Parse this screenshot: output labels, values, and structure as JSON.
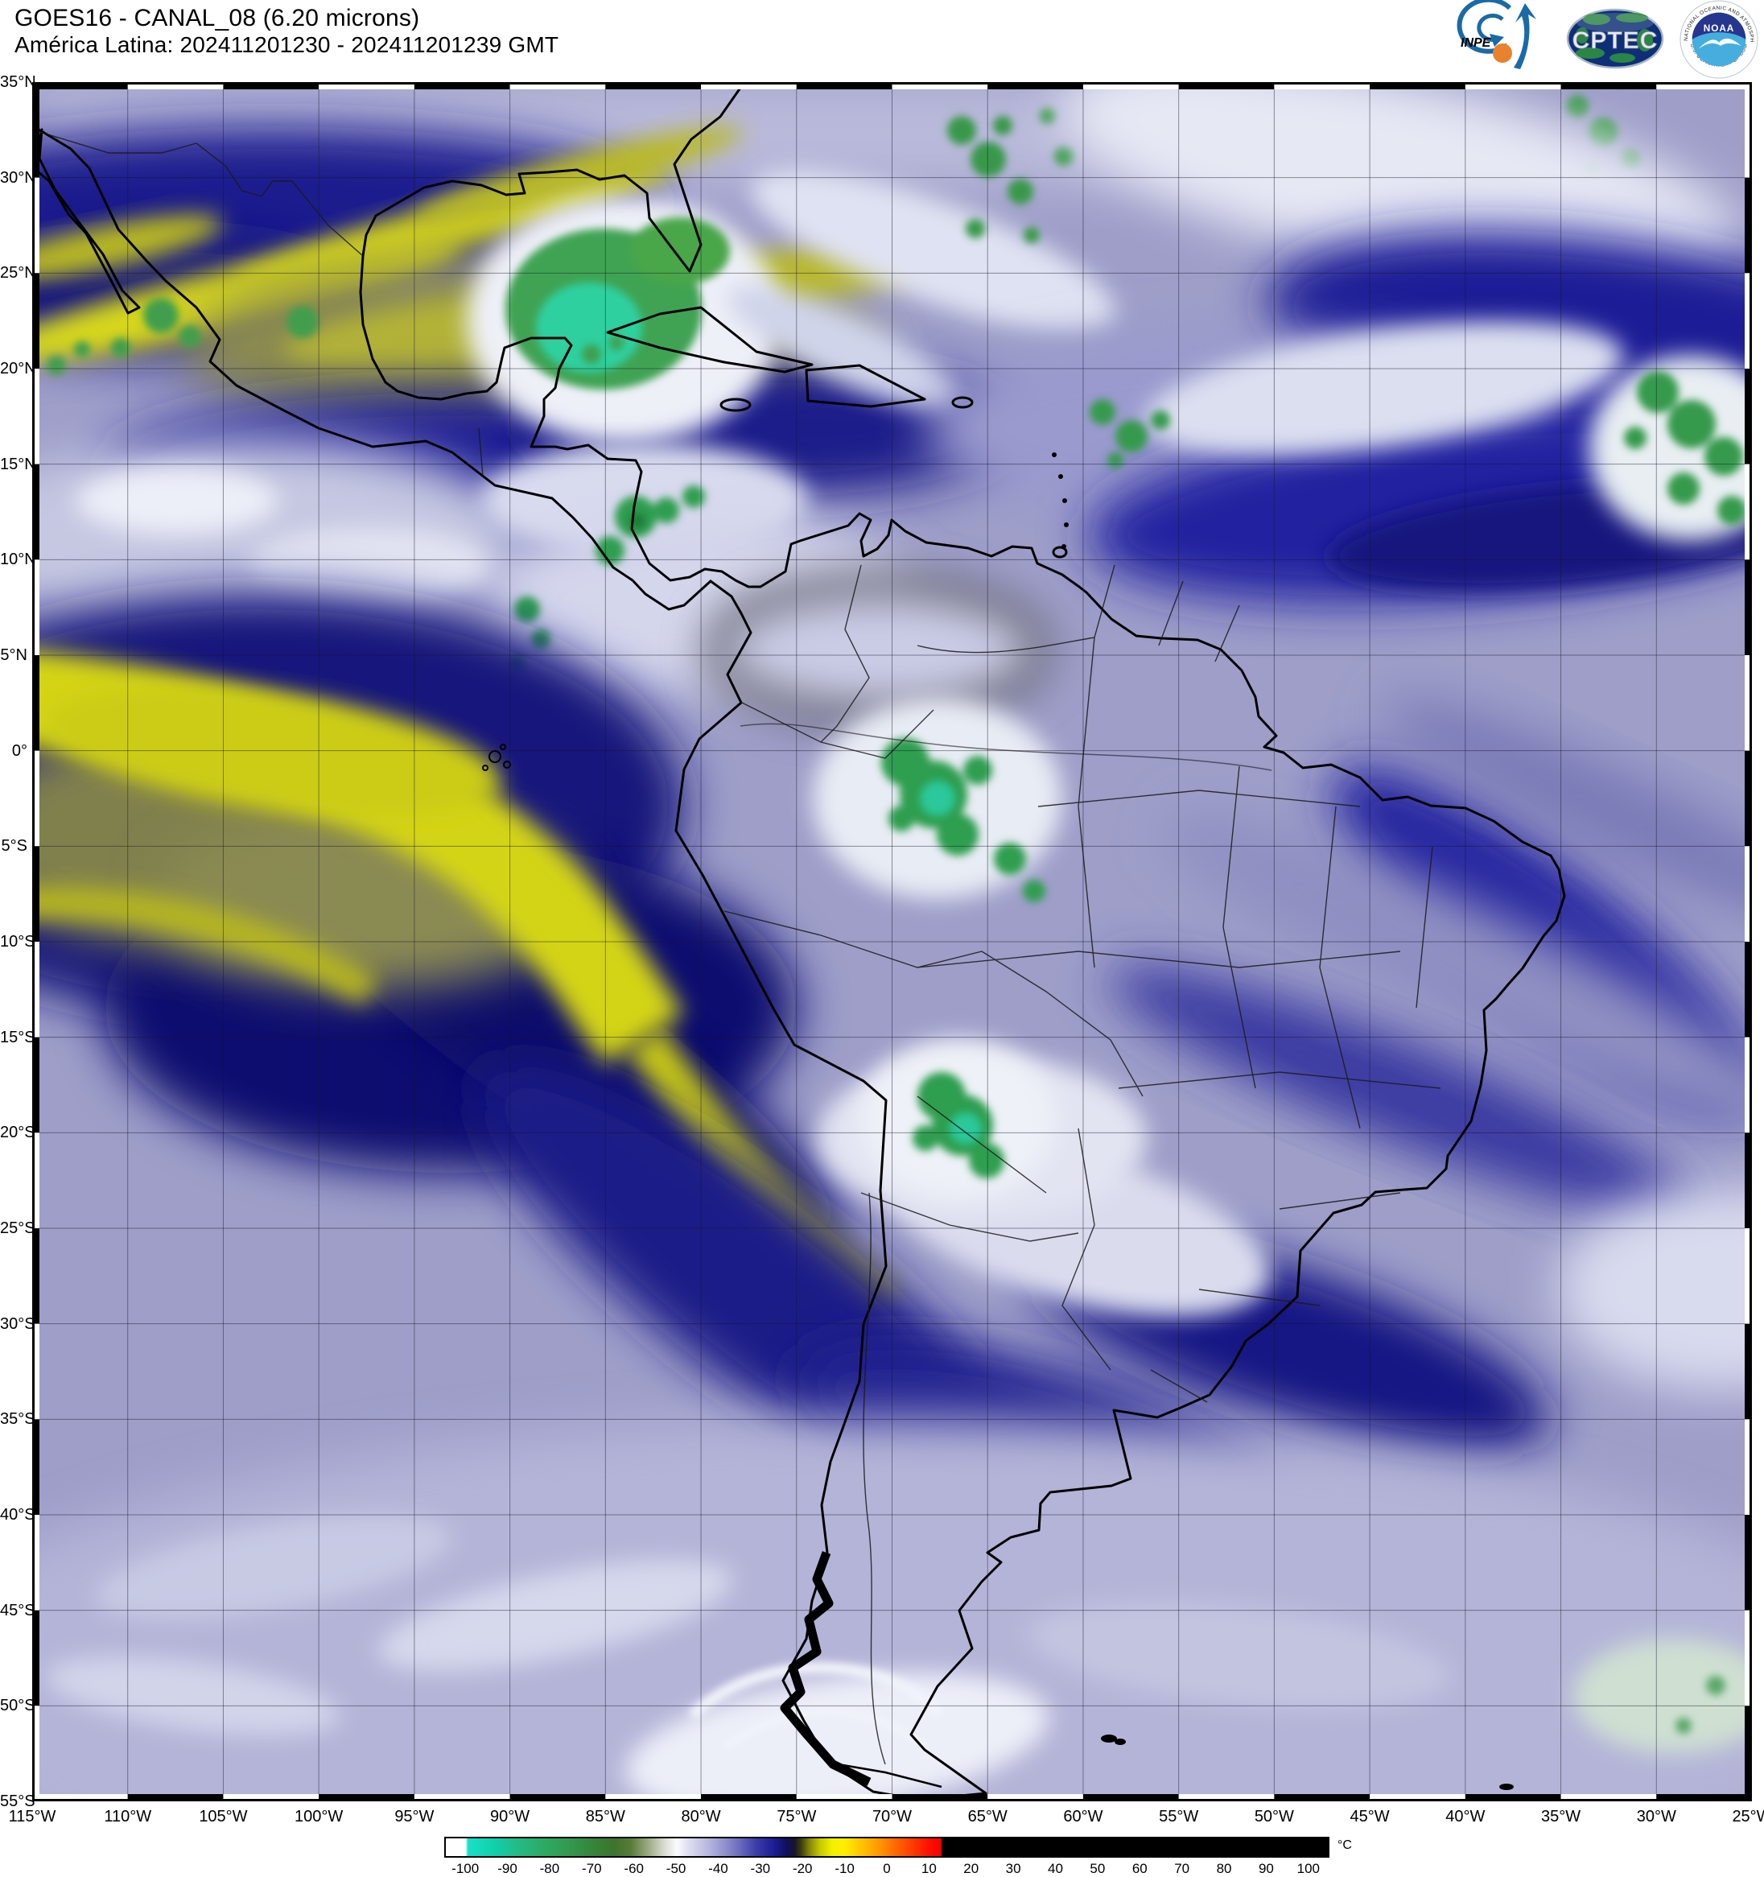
{
  "header": {
    "title_line1": "GOES16 - CANAL_08 (6.20 microns)",
    "title_line2": "América Latina: 202411201230 - 202411201239 GMT"
  },
  "logos": {
    "inpe_label": "INPE",
    "cptec_label": "CPTEC",
    "noaa_label": "NOAA",
    "noaa_ring_top": "NATIONAL OCEANIC AND ATMOSPHERIC ADMINISTRATION",
    "noaa_ring_bottom": "U.S. DEPARTMENT OF COMMERCE"
  },
  "map": {
    "lat_labels": [
      "35°N",
      "30°N",
      "25°N",
      "20°N",
      "15°N",
      "10°N",
      "5°N",
      "0°",
      "5°S",
      "10°S",
      "15°S",
      "20°S",
      "25°S",
      "30°S",
      "35°S",
      "40°S",
      "45°S",
      "50°S",
      "55°S"
    ],
    "lon_labels": [
      "115°W",
      "110°W",
      "105°W",
      "100°W",
      "95°W",
      "90°W",
      "85°W",
      "80°W",
      "75°W",
      "70°W",
      "65°W",
      "60°W",
      "55°W",
      "50°W",
      "45°W",
      "40°W",
      "35°W",
      "30°W",
      "25°W"
    ],
    "grid_deg_step": 5,
    "lon_range": [
      "115°W",
      "25°W"
    ],
    "lat_range": [
      "35°N",
      "55°S"
    ]
  },
  "colorbar": {
    "unit": "°C",
    "ticks": [
      -100,
      -90,
      -80,
      -70,
      -60,
      -50,
      -40,
      -30,
      -20,
      -10,
      0,
      10,
      20,
      30,
      40,
      50,
      60,
      70,
      80,
      90,
      100
    ],
    "value_min": -105,
    "value_max": 105,
    "stops": [
      {
        "v": -105,
        "c": "#ffffff"
      },
      {
        "v": -100.3,
        "c": "#ffffff"
      },
      {
        "v": -99.7,
        "c": "#18e0c8"
      },
      {
        "v": -93,
        "c": "#10cfa8"
      },
      {
        "v": -88,
        "c": "#22bc86"
      },
      {
        "v": -82,
        "c": "#2cab66"
      },
      {
        "v": -76,
        "c": "#339a50"
      },
      {
        "v": -70,
        "c": "#35853a"
      },
      {
        "v": -65,
        "c": "#3c742e"
      },
      {
        "v": -61,
        "c": "#5a7a38"
      },
      {
        "v": -57,
        "c": "#9aa87e"
      },
      {
        "v": -53,
        "c": "#d8dcd0"
      },
      {
        "v": -50,
        "c": "#fbfbfd"
      },
      {
        "v": -47,
        "c": "#dcdcf0"
      },
      {
        "v": -43,
        "c": "#bbbbe2"
      },
      {
        "v": -39,
        "c": "#9595cf"
      },
      {
        "v": -35,
        "c": "#6a6abd"
      },
      {
        "v": -31,
        "c": "#3b3baa"
      },
      {
        "v": -27,
        "c": "#1d1d95"
      },
      {
        "v": -24,
        "c": "#101060"
      },
      {
        "v": -22,
        "c": "#15152e"
      },
      {
        "v": -20.5,
        "c": "#3a3a10"
      },
      {
        "v": -18.5,
        "c": "#83830a"
      },
      {
        "v": -16,
        "c": "#c6c602"
      },
      {
        "v": -13,
        "c": "#f2f200"
      },
      {
        "v": -10,
        "c": "#ffee00"
      },
      {
        "v": -6,
        "c": "#ffc400"
      },
      {
        "v": -2,
        "c": "#ff9800"
      },
      {
        "v": 2,
        "c": "#ff6a00"
      },
      {
        "v": 6,
        "c": "#ff3c00"
      },
      {
        "v": 10,
        "c": "#ff1000"
      },
      {
        "v": 12.8,
        "c": "#f80000"
      },
      {
        "v": 13.2,
        "c": "#000000"
      },
      {
        "v": 105,
        "c": "#000000"
      }
    ]
  },
  "palette_hints": {
    "dry_navy": "#1d1d95",
    "very_dry_yellow": "#d6d61c",
    "moist_lavender": "#a0a0cc",
    "cloud_white": "#eef0f8",
    "cold_top_green": "#3fa352",
    "coldest_teal": "#2fd0a0"
  }
}
